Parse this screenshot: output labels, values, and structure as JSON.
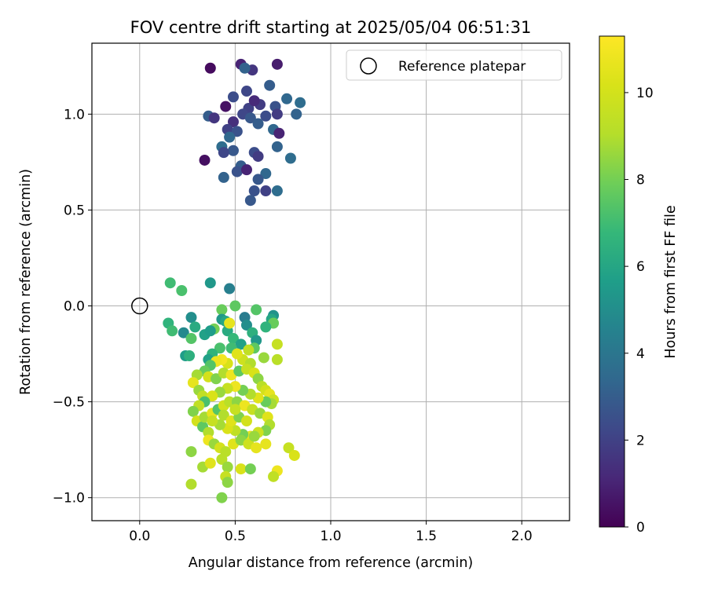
{
  "chart_data": {
    "type": "scatter",
    "title": "FOV centre drift starting at 2025/05/04 06:51:31",
    "xlabel": "Angular distance from reference (arcmin)",
    "ylabel": "Rotation from reference (arcmin)",
    "xlim": [
      -0.25,
      2.25
    ],
    "ylim": [
      -1.12,
      1.37
    ],
    "xticks": [
      0.0,
      0.5,
      1.0,
      1.5,
      2.0
    ],
    "xtick_labels": [
      "0.0",
      "0.5",
      "1.0",
      "1.5",
      "2.0"
    ],
    "yticks": [
      -1.0,
      -0.5,
      0.0,
      0.5,
      1.0
    ],
    "ytick_labels": [
      "−1.0",
      "−0.5",
      "0.0",
      "0.5",
      "1.0"
    ],
    "grid": true,
    "legend": {
      "position": "upper right",
      "entries": [
        "Reference platepar"
      ]
    },
    "colorbar": {
      "label": "Hours from first FF file",
      "colormap": "viridis",
      "range": [
        0,
        11.3
      ],
      "ticks": [
        0,
        2,
        4,
        6,
        8,
        10
      ],
      "tick_labels": [
        "0",
        "2",
        "4",
        "6",
        "8",
        "10"
      ]
    },
    "reference_point": {
      "x": 0.0,
      "y": 0.0
    },
    "series": [
      {
        "points": [
          [
            0.37,
            1.24,
            0.3
          ],
          [
            0.53,
            1.26,
            1.0
          ],
          [
            0.72,
            1.26,
            0.8
          ],
          [
            0.59,
            1.23,
            1.6
          ],
          [
            0.55,
            1.24,
            3.2
          ],
          [
            0.56,
            1.12,
            2.2
          ],
          [
            0.49,
            1.09,
            2.4
          ],
          [
            0.68,
            1.15,
            3.0
          ],
          [
            0.77,
            1.08,
            3.4
          ],
          [
            0.84,
            1.06,
            3.6
          ],
          [
            0.45,
            1.04,
            0.5
          ],
          [
            0.57,
            1.03,
            2.0
          ],
          [
            0.63,
            1.05,
            1.8
          ],
          [
            0.6,
            1.07,
            1.2
          ],
          [
            0.71,
            1.04,
            2.6
          ],
          [
            0.36,
            0.99,
            3.0
          ],
          [
            0.39,
            0.98,
            1.6
          ],
          [
            0.54,
            1.0,
            2.2
          ],
          [
            0.58,
            0.98,
            2.8
          ],
          [
            0.66,
            0.99,
            2.4
          ],
          [
            0.72,
            1.0,
            1.8
          ],
          [
            0.82,
            1.0,
            3.2
          ],
          [
            0.49,
            0.96,
            1.4
          ],
          [
            0.46,
            0.92,
            2.0
          ],
          [
            0.51,
            0.91,
            2.6
          ],
          [
            0.62,
            0.95,
            3.0
          ],
          [
            0.7,
            0.92,
            3.4
          ],
          [
            0.73,
            0.9,
            1.0
          ],
          [
            0.47,
            0.88,
            3.4
          ],
          [
            0.43,
            0.83,
            3.6
          ],
          [
            0.49,
            0.81,
            2.8
          ],
          [
            0.6,
            0.8,
            2.4
          ],
          [
            0.62,
            0.78,
            1.8
          ],
          [
            0.72,
            0.83,
            3.2
          ],
          [
            0.79,
            0.77,
            3.6
          ],
          [
            0.34,
            0.76,
            0.4
          ],
          [
            0.44,
            0.8,
            2.2
          ],
          [
            0.53,
            0.73,
            3.0
          ],
          [
            0.51,
            0.7,
            2.6
          ],
          [
            0.56,
            0.71,
            1.0
          ],
          [
            0.66,
            0.69,
            3.4
          ],
          [
            0.62,
            0.66,
            2.8
          ],
          [
            0.44,
            0.67,
            3.2
          ],
          [
            0.6,
            0.6,
            2.6
          ],
          [
            0.66,
            0.6,
            2.0
          ],
          [
            0.72,
            0.6,
            3.6
          ],
          [
            0.58,
            0.55,
            2.8
          ]
        ]
      },
      {
        "points": [
          [
            0.16,
            0.12,
            7.0
          ],
          [
            0.22,
            0.08,
            7.2
          ],
          [
            0.37,
            0.12,
            5.4
          ],
          [
            0.47,
            0.09,
            4.4
          ],
          [
            0.15,
            -0.09,
            6.6
          ],
          [
            0.17,
            -0.13,
            7.0
          ],
          [
            0.27,
            -0.06,
            5.0
          ],
          [
            0.23,
            -0.14,
            4.8
          ],
          [
            0.27,
            -0.17,
            7.4
          ],
          [
            0.34,
            -0.15,
            5.8
          ],
          [
            0.29,
            -0.11,
            6.2
          ],
          [
            0.24,
            -0.26,
            5.6
          ],
          [
            0.26,
            -0.26,
            6.4
          ],
          [
            0.43,
            -0.02,
            7.8
          ],
          [
            0.5,
            0.0,
            7.6
          ],
          [
            0.61,
            -0.02,
            7.4
          ],
          [
            0.7,
            -0.05,
            5.2
          ],
          [
            0.69,
            -0.07,
            6.0
          ],
          [
            0.7,
            -0.09,
            7.8
          ],
          [
            0.66,
            -0.11,
            6.6
          ],
          [
            0.43,
            -0.07,
            5.4
          ],
          [
            0.45,
            -0.08,
            6.0
          ],
          [
            0.39,
            -0.12,
            8.0
          ],
          [
            0.37,
            -0.13,
            5.6
          ],
          [
            0.46,
            -0.13,
            6.2
          ],
          [
            0.55,
            -0.06,
            4.2
          ],
          [
            0.56,
            -0.1,
            5.0
          ],
          [
            0.59,
            -0.14,
            6.4
          ],
          [
            0.49,
            -0.17,
            6.8
          ],
          [
            0.53,
            -0.2,
            5.8
          ],
          [
            0.48,
            -0.22,
            7.0
          ],
          [
            0.42,
            -0.22,
            7.2
          ],
          [
            0.38,
            -0.25,
            6.6
          ],
          [
            0.36,
            -0.28,
            5.8
          ],
          [
            0.61,
            -0.18,
            5.4
          ],
          [
            0.6,
            -0.22,
            7.6
          ],
          [
            0.65,
            -0.27,
            8.6
          ],
          [
            0.72,
            -0.2,
            9.6
          ],
          [
            0.72,
            -0.28,
            9.2
          ],
          [
            0.57,
            -0.23,
            9.4
          ],
          [
            0.54,
            -0.28,
            9.8
          ],
          [
            0.51,
            -0.25,
            10.4
          ],
          [
            0.47,
            -0.09,
            10.6
          ],
          [
            0.58,
            -0.3,
            9.0
          ],
          [
            0.46,
            -0.3,
            10.2
          ],
          [
            0.43,
            -0.28,
            11.0
          ],
          [
            0.4,
            -0.29,
            10.8
          ],
          [
            0.37,
            -0.31,
            7.4
          ],
          [
            0.34,
            -0.34,
            7.8
          ],
          [
            0.3,
            -0.36,
            8.8
          ],
          [
            0.28,
            -0.4,
            10.6
          ],
          [
            0.31,
            -0.44,
            8.6
          ],
          [
            0.33,
            -0.47,
            9.4
          ],
          [
            0.36,
            -0.37,
            10.0
          ],
          [
            0.4,
            -0.38,
            8.2
          ],
          [
            0.44,
            -0.35,
            9.0
          ],
          [
            0.48,
            -0.36,
            10.8
          ],
          [
            0.52,
            -0.34,
            7.6
          ],
          [
            0.56,
            -0.33,
            9.6
          ],
          [
            0.6,
            -0.35,
            10.2
          ],
          [
            0.62,
            -0.38,
            8.4
          ],
          [
            0.64,
            -0.42,
            9.2
          ],
          [
            0.66,
            -0.44,
            10.0
          ],
          [
            0.68,
            -0.46,
            10.6
          ],
          [
            0.7,
            -0.49,
            9.8
          ],
          [
            0.69,
            -0.51,
            8.8
          ],
          [
            0.66,
            -0.5,
            7.8
          ],
          [
            0.62,
            -0.48,
            10.4
          ],
          [
            0.58,
            -0.46,
            9.0
          ],
          [
            0.54,
            -0.44,
            8.0
          ],
          [
            0.5,
            -0.42,
            10.8
          ],
          [
            0.46,
            -0.43,
            9.6
          ],
          [
            0.42,
            -0.45,
            8.6
          ],
          [
            0.38,
            -0.47,
            10.2
          ],
          [
            0.34,
            -0.5,
            7.2
          ],
          [
            0.31,
            -0.52,
            9.4
          ],
          [
            0.28,
            -0.55,
            8.2
          ],
          [
            0.3,
            -0.6,
            10.0
          ],
          [
            0.33,
            -0.63,
            7.6
          ],
          [
            0.36,
            -0.66,
            9.0
          ],
          [
            0.34,
            -0.58,
            8.8
          ],
          [
            0.38,
            -0.56,
            10.6
          ],
          [
            0.41,
            -0.54,
            7.4
          ],
          [
            0.44,
            -0.52,
            10.0
          ],
          [
            0.47,
            -0.5,
            9.2
          ],
          [
            0.51,
            -0.5,
            8.4
          ],
          [
            0.55,
            -0.52,
            10.8
          ],
          [
            0.59,
            -0.54,
            9.6
          ],
          [
            0.63,
            -0.56,
            8.6
          ],
          [
            0.67,
            -0.58,
            10.4
          ],
          [
            0.68,
            -0.62,
            9.0
          ],
          [
            0.66,
            -0.65,
            8.2
          ],
          [
            0.62,
            -0.66,
            9.8
          ],
          [
            0.58,
            -0.68,
            10.6
          ],
          [
            0.54,
            -0.67,
            8.0
          ],
          [
            0.5,
            -0.65,
            9.4
          ],
          [
            0.46,
            -0.64,
            10.2
          ],
          [
            0.42,
            -0.62,
            8.8
          ],
          [
            0.38,
            -0.6,
            9.6
          ],
          [
            0.36,
            -0.7,
            10.8
          ],
          [
            0.39,
            -0.72,
            8.6
          ],
          [
            0.42,
            -0.74,
            10.0
          ],
          [
            0.45,
            -0.76,
            9.2
          ],
          [
            0.49,
            -0.72,
            10.4
          ],
          [
            0.53,
            -0.7,
            8.4
          ],
          [
            0.57,
            -0.72,
            9.8
          ],
          [
            0.61,
            -0.74,
            10.6
          ],
          [
            0.6,
            -0.68,
            8.6
          ],
          [
            0.44,
            -0.57,
            9.0
          ],
          [
            0.48,
            -0.6,
            10.4
          ],
          [
            0.52,
            -0.58,
            8.2
          ],
          [
            0.56,
            -0.6,
            10.0
          ],
          [
            0.5,
            -0.54,
            9.6
          ],
          [
            0.27,
            -0.76,
            8.4
          ],
          [
            0.33,
            -0.84,
            8.8
          ],
          [
            0.37,
            -0.82,
            10.4
          ],
          [
            0.43,
            -0.8,
            9.2
          ],
          [
            0.46,
            -0.84,
            8.6
          ],
          [
            0.53,
            -0.85,
            10.2
          ],
          [
            0.58,
            -0.85,
            8.0
          ],
          [
            0.66,
            -0.72,
            10.6
          ],
          [
            0.72,
            -0.86,
            10.8
          ],
          [
            0.7,
            -0.89,
            9.4
          ],
          [
            0.78,
            -0.74,
            9.6
          ],
          [
            0.81,
            -0.78,
            10.2
          ],
          [
            0.27,
            -0.93,
            9.0
          ],
          [
            0.45,
            -0.89,
            9.6
          ],
          [
            0.46,
            -0.92,
            8.4
          ],
          [
            0.43,
            -1.0,
            8.2
          ]
        ]
      }
    ]
  }
}
